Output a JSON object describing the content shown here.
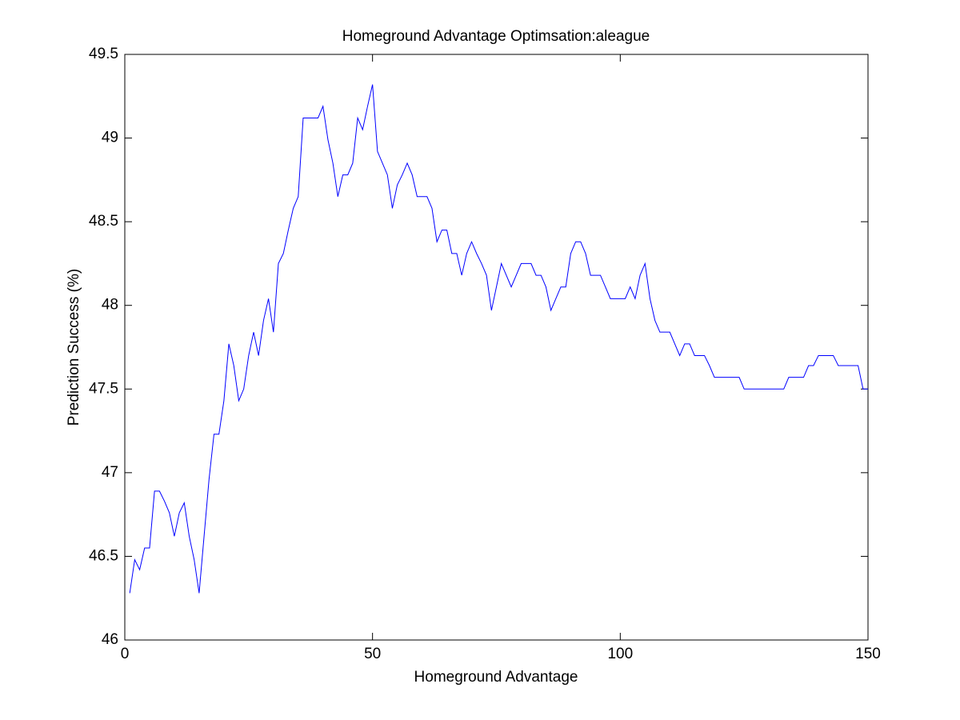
{
  "chart_data": {
    "type": "line",
    "title": "Homeground Advantage Optimsation:aleague",
    "x_label": "Homeground Advantage",
    "y_label": "Prediction Success (%)",
    "color": "#0000ff",
    "grid": false,
    "x": [
      1,
      2,
      3,
      4,
      5,
      6,
      7,
      8,
      9,
      10,
      11,
      12,
      13,
      14,
      15,
      16,
      17,
      18,
      19,
      20,
      21,
      22,
      23,
      24,
      25,
      26,
      27,
      28,
      29,
      30,
      31,
      32,
      33,
      34,
      35,
      36,
      37,
      38,
      39,
      40,
      41,
      42,
      43,
      44,
      45,
      46,
      47,
      48,
      49,
      50,
      51,
      52,
      53,
      54,
      55,
      56,
      57,
      58,
      59,
      60,
      61,
      62,
      63,
      64,
      65,
      66,
      67,
      68,
      69,
      70,
      71,
      72,
      73,
      74,
      75,
      76,
      77,
      78,
      79,
      80,
      81,
      82,
      83,
      84,
      85,
      86,
      87,
      88,
      89,
      90,
      91,
      92,
      93,
      94,
      95,
      96,
      97,
      98,
      99,
      100,
      101,
      102,
      103,
      104,
      105,
      106,
      107,
      108,
      109,
      110,
      111,
      112,
      113,
      114,
      115,
      116,
      117,
      118,
      119,
      120,
      121,
      122,
      123,
      124,
      125,
      126,
      127,
      128,
      129,
      130,
      131,
      132,
      133,
      134,
      135,
      136,
      137,
      138,
      139,
      140,
      141,
      142,
      143,
      144,
      145,
      146,
      147,
      148,
      149,
      150
    ],
    "values": [
      46.28,
      46.48,
      46.42,
      46.55,
      46.55,
      46.89,
      46.89,
      46.83,
      46.76,
      46.62,
      46.76,
      46.82,
      46.62,
      46.48,
      46.28,
      46.62,
      46.96,
      47.23,
      47.23,
      47.43,
      47.77,
      47.64,
      47.43,
      47.5,
      47.7,
      47.84,
      47.7,
      47.91,
      48.04,
      47.84,
      48.25,
      48.31,
      48.45,
      48.58,
      48.65,
      49.12,
      49.12,
      49.12,
      49.12,
      49.19,
      48.99,
      48.85,
      48.65,
      48.78,
      48.78,
      48.85,
      49.12,
      49.05,
      49.19,
      49.32,
      48.92,
      48.85,
      48.78,
      48.58,
      48.72,
      48.78,
      48.85,
      48.78,
      48.65,
      48.65,
      48.65,
      48.58,
      48.38,
      48.45,
      48.45,
      48.31,
      48.31,
      48.18,
      48.31,
      48.38,
      48.31,
      48.25,
      48.18,
      47.97,
      48.11,
      48.25,
      48.18,
      48.11,
      48.18,
      48.25,
      48.25,
      48.25,
      48.18,
      48.18,
      48.11,
      47.97,
      48.04,
      48.11,
      48.11,
      48.31,
      48.38,
      48.38,
      48.31,
      48.18,
      48.18,
      48.18,
      48.11,
      48.04,
      48.04,
      48.04,
      48.04,
      48.11,
      48.04,
      48.18,
      48.25,
      48.04,
      47.91,
      47.84,
      47.84,
      47.84,
      47.77,
      47.7,
      47.77,
      47.77,
      47.7,
      47.7,
      47.7,
      47.64,
      47.57,
      47.57,
      47.57,
      47.57,
      47.57,
      47.57,
      47.5,
      47.5,
      47.5,
      47.5,
      47.5,
      47.5,
      47.5,
      47.5,
      47.5,
      47.57,
      47.57,
      47.57,
      47.57,
      47.64,
      47.64,
      47.7,
      47.7,
      47.7,
      47.7,
      47.64,
      47.64,
      47.64,
      47.64,
      47.64,
      47.5,
      47.5
    ],
    "xlim": [
      0,
      150
    ],
    "xticks": [
      0,
      50,
      100,
      150
    ],
    "ylim": [
      46,
      49.5
    ],
    "yticks": [
      46,
      46.5,
      47,
      47.5,
      48,
      48.5,
      49,
      49.5
    ]
  }
}
